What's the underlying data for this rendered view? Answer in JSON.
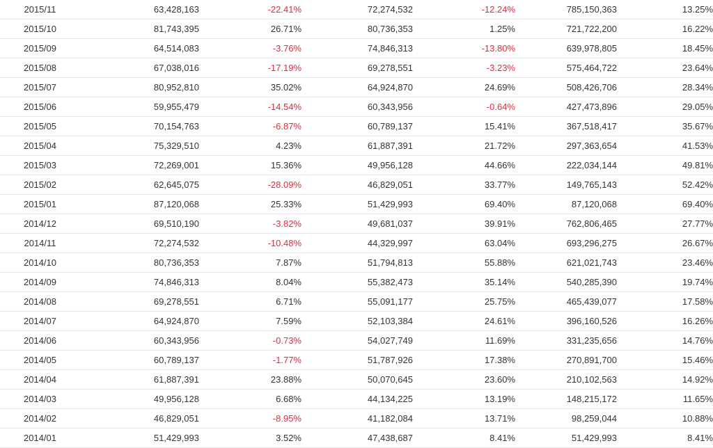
{
  "colors": {
    "negative": "#e8283a",
    "text": "#333333",
    "row_border": "#e5e5e5"
  },
  "rows": [
    [
      "2015/11",
      "63,428,163",
      "-22.41%",
      "72,274,532",
      "-12.24%",
      "785,150,363",
      "13.25%"
    ],
    [
      "2015/10",
      "81,743,395",
      "26.71%",
      "80,736,353",
      "1.25%",
      "721,722,200",
      "16.22%"
    ],
    [
      "2015/09",
      "64,514,083",
      "-3.76%",
      "74,846,313",
      "-13.80%",
      "639,978,805",
      "18.45%"
    ],
    [
      "2015/08",
      "67,038,016",
      "-17.19%",
      "69,278,551",
      "-3.23%",
      "575,464,722",
      "23.64%"
    ],
    [
      "2015/07",
      "80,952,810",
      "35.02%",
      "64,924,870",
      "24.69%",
      "508,426,706",
      "28.34%"
    ],
    [
      "2015/06",
      "59,955,479",
      "-14.54%",
      "60,343,956",
      "-0.64%",
      "427,473,896",
      "29.05%"
    ],
    [
      "2015/05",
      "70,154,763",
      "-6.87%",
      "60,789,137",
      "15.41%",
      "367,518,417",
      "35.67%"
    ],
    [
      "2015/04",
      "75,329,510",
      "4.23%",
      "61,887,391",
      "21.72%",
      "297,363,654",
      "41.53%"
    ],
    [
      "2015/03",
      "72,269,001",
      "15.36%",
      "49,956,128",
      "44.66%",
      "222,034,144",
      "49.81%"
    ],
    [
      "2015/02",
      "62,645,075",
      "-28.09%",
      "46,829,051",
      "33.77%",
      "149,765,143",
      "52.42%"
    ],
    [
      "2015/01",
      "87,120,068",
      "25.33%",
      "51,429,993",
      "69.40%",
      "87,120,068",
      "69.40%"
    ],
    [
      "2014/12",
      "69,510,190",
      "-3.82%",
      "49,681,037",
      "39.91%",
      "762,806,465",
      "27.77%"
    ],
    [
      "2014/11",
      "72,274,532",
      "-10.48%",
      "44,329,997",
      "63.04%",
      "693,296,275",
      "26.67%"
    ],
    [
      "2014/10",
      "80,736,353",
      "7.87%",
      "51,794,813",
      "55.88%",
      "621,021,743",
      "23.46%"
    ],
    [
      "2014/09",
      "74,846,313",
      "8.04%",
      "55,382,473",
      "35.14%",
      "540,285,390",
      "19.74%"
    ],
    [
      "2014/08",
      "69,278,551",
      "6.71%",
      "55,091,177",
      "25.75%",
      "465,439,077",
      "17.58%"
    ],
    [
      "2014/07",
      "64,924,870",
      "7.59%",
      "52,103,384",
      "24.61%",
      "396,160,526",
      "16.26%"
    ],
    [
      "2014/06",
      "60,343,956",
      "-0.73%",
      "54,027,749",
      "11.69%",
      "331,235,656",
      "14.76%"
    ],
    [
      "2014/05",
      "60,789,137",
      "-1.77%",
      "51,787,926",
      "17.38%",
      "270,891,700",
      "15.46%"
    ],
    [
      "2014/04",
      "61,887,391",
      "23.88%",
      "50,070,645",
      "23.60%",
      "210,102,563",
      "14.92%"
    ],
    [
      "2014/03",
      "49,956,128",
      "6.68%",
      "44,134,225",
      "13.19%",
      "148,215,172",
      "11.65%"
    ],
    [
      "2014/02",
      "46,829,051",
      "-8.95%",
      "41,182,084",
      "13.71%",
      "98,259,044",
      "10.88%"
    ],
    [
      "2014/01",
      "51,429,993",
      "3.52%",
      "47,438,687",
      "8.41%",
      "51,429,993",
      "8.41%"
    ]
  ]
}
